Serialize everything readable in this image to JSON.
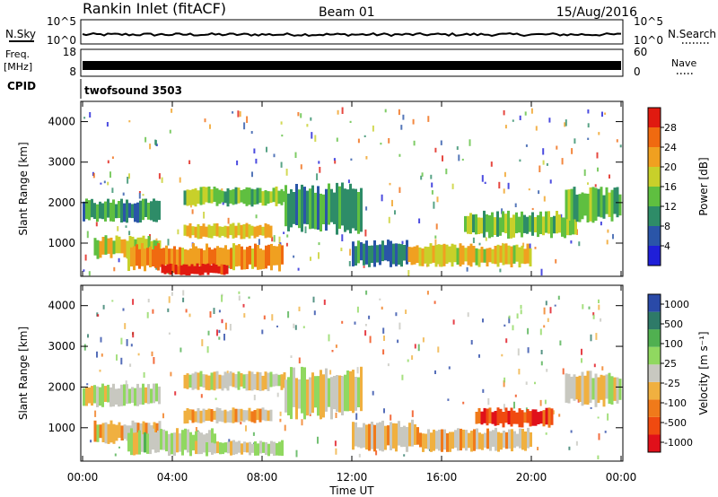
{
  "header": {
    "station": "Rankin Inlet (fitACF)",
    "beam": "Beam 01",
    "date": "15/Aug/2016"
  },
  "noise_panel": {
    "left_label": "N.Sky",
    "right_label": "N.Search",
    "left_ticks": [
      "10^5",
      "10^0"
    ],
    "right_ticks": [
      "10^5",
      "10^0"
    ]
  },
  "freq_panel": {
    "left_label": "Freq.",
    "left_unit": "[MHz]",
    "right_label": "Nave",
    "left_ticks": [
      "18",
      "8"
    ],
    "right_ticks": [
      "60",
      "0"
    ]
  },
  "cpid": {
    "label": "CPID",
    "value": "twofsound 3503"
  },
  "x_axis": {
    "title": "Time UT",
    "ticks": [
      "00:00",
      "04:00",
      "08:00",
      "12:00",
      "16:00",
      "20:00",
      "00:00"
    ]
  },
  "chart_data": [
    {
      "type": "heatmap",
      "title": "",
      "xlabel": "Time UT",
      "ylabel": "Slant Range [km]",
      "xlim_hours": [
        0,
        24
      ],
      "ylim": [
        180,
        4500
      ],
      "yticks": [
        1000,
        2000,
        3000,
        4000
      ],
      "colorbar": {
        "label": "Power [dB]",
        "ticks": [
          "4",
          "8",
          "12",
          "16",
          "20",
          "24",
          "28"
        ],
        "range": [
          0,
          30
        ],
        "colors": [
          "#1f1fd8",
          "#2a55a8",
          "#2e8c68",
          "#5fbf40",
          "#c8d02a",
          "#f0a020",
          "#f06a10",
          "#e01a10"
        ]
      },
      "bands": [
        {
          "t0": 0.0,
          "t1": 3.5,
          "r0": 1500,
          "r1": 2100,
          "value": 10
        },
        {
          "t0": 0.5,
          "t1": 3.5,
          "r0": 600,
          "r1": 1200,
          "value": 17
        },
        {
          "t0": 2.0,
          "t1": 9.0,
          "r0": 300,
          "r1": 1000,
          "value": 22
        },
        {
          "t0": 3.5,
          "t1": 6.5,
          "r0": 200,
          "r1": 500,
          "value": 29
        },
        {
          "t0": 4.5,
          "t1": 8.5,
          "r0": 1100,
          "r1": 1500,
          "value": 19
        },
        {
          "t0": 4.5,
          "t1": 9.0,
          "r0": 1900,
          "r1": 2400,
          "value": 14
        },
        {
          "t0": 9.0,
          "t1": 12.5,
          "r0": 1200,
          "r1": 2500,
          "value": 9
        },
        {
          "t0": 12.0,
          "t1": 14.5,
          "r0": 400,
          "r1": 1100,
          "value": 8
        },
        {
          "t0": 14.5,
          "t1": 20.0,
          "r0": 400,
          "r1": 1000,
          "value": 18
        },
        {
          "t0": 17.0,
          "t1": 22.0,
          "r0": 1100,
          "r1": 1800,
          "value": 14
        },
        {
          "t0": 21.5,
          "t1": 24.0,
          "r0": 1500,
          "r1": 2400,
          "value": 12
        }
      ]
    },
    {
      "type": "heatmap",
      "title": "",
      "xlabel": "Time UT",
      "ylabel": "Slant Range [km]",
      "xlim_hours": [
        0,
        24
      ],
      "ylim": [
        180,
        4500
      ],
      "yticks": [
        1000,
        2000,
        3000,
        4000
      ],
      "colorbar": {
        "label": "Velocity [m s⁻¹]",
        "ticks": [
          "1000",
          "500",
          "100",
          "25",
          "-25",
          "-100",
          "-500",
          "-1000"
        ],
        "range": [
          -1200,
          1200
        ],
        "colors": [
          "#e0101a",
          "#f04a10",
          "#f07a1a",
          "#f0b040",
          "#c8c8c0",
          "#90d860",
          "#50b050",
          "#2e7a68",
          "#2a4aa8"
        ]
      },
      "bands": [
        {
          "t0": 0.0,
          "t1": 3.5,
          "r0": 1500,
          "r1": 2100,
          "value": 0
        },
        {
          "t0": 0.5,
          "t1": 3.5,
          "r0": 600,
          "r1": 1200,
          "value": -150
        },
        {
          "t0": 2.0,
          "t1": 6.0,
          "r0": 300,
          "r1": 1000,
          "value": 120
        },
        {
          "t0": 5.0,
          "t1": 9.0,
          "r0": 300,
          "r1": 700,
          "value": 0
        },
        {
          "t0": 4.5,
          "t1": 8.5,
          "r0": 1100,
          "r1": 1500,
          "value": -200
        },
        {
          "t0": 4.5,
          "t1": 9.0,
          "r0": 1900,
          "r1": 2400,
          "value": 0
        },
        {
          "t0": 9.0,
          "t1": 12.5,
          "r0": 1200,
          "r1": 2500,
          "value": 0
        },
        {
          "t0": 12.0,
          "t1": 15.0,
          "r0": 400,
          "r1": 1200,
          "value": -200
        },
        {
          "t0": 15.0,
          "t1": 20.0,
          "r0": 400,
          "r1": 1000,
          "value": -200
        },
        {
          "t0": 17.5,
          "t1": 21.0,
          "r0": 1000,
          "r1": 1500,
          "value": -800
        },
        {
          "t0": 21.5,
          "t1": 24.0,
          "r0": 1500,
          "r1": 2400,
          "value": 0
        }
      ]
    }
  ]
}
